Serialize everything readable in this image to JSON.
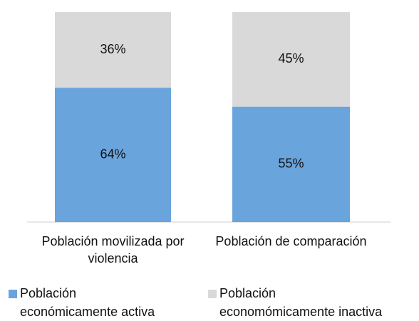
{
  "chart_data": {
    "type": "stacked_bar",
    "categories": [
      "Población movilizada por violencia",
      "Población de comparación"
    ],
    "series": [
      {
        "name": "Población económicamente activa",
        "color": "#6aa4dc",
        "values": [
          64,
          55
        ],
        "value_labels": [
          "64%",
          "55%"
        ]
      },
      {
        "name": "Población economómicamente inactiva",
        "color": "#d9d9d9",
        "values": [
          36,
          45
        ],
        "value_labels": [
          "36%",
          "45%"
        ]
      }
    ],
    "ylim": [
      0,
      100
    ],
    "legend": "bottom"
  }
}
